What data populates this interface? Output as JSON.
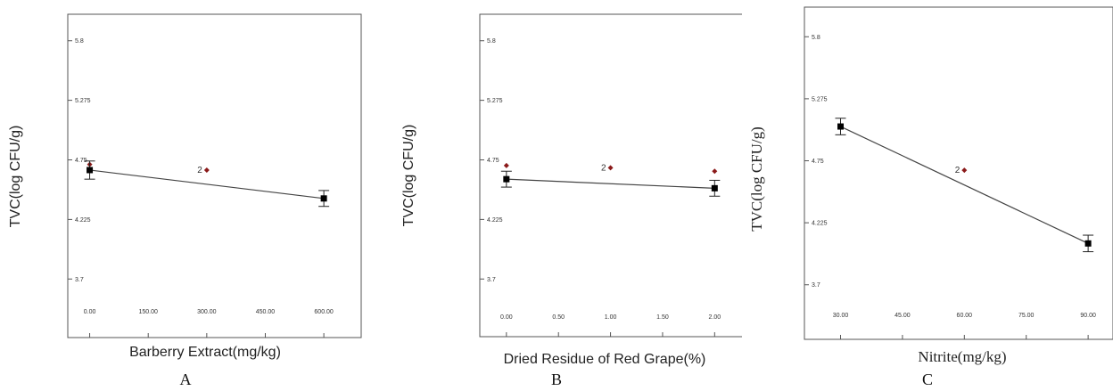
{
  "chart_data": [
    {
      "type": "line",
      "panel_label": "A",
      "xlabel": "Barberry Extract(mg/kg)",
      "ylabel": "TVC(log CFU/g)",
      "xlim": [
        -15,
        650
      ],
      "ylim": [
        3.6,
        5.9
      ],
      "x_ticks": [
        0,
        150,
        300,
        450,
        600
      ],
      "x_tick_labels": [
        "0.00",
        "150.00",
        "300.00",
        "450.00",
        "600.00"
      ],
      "y_ticks": [
        3.7,
        4.225,
        4.75,
        5.275,
        5.8
      ],
      "y_tick_labels": [
        "3.7",
        "4.225",
        "4.75",
        "5.275",
        "5.8"
      ],
      "fit_line": [
        {
          "x": 0,
          "y": 4.66
        },
        {
          "x": 600,
          "y": 4.41
        }
      ],
      "means": [
        {
          "x": 0,
          "y": 4.66,
          "err": 0.08
        },
        {
          "x": 600,
          "y": 4.41,
          "err": 0.07
        }
      ],
      "observations": [
        {
          "x": 0,
          "y": 4.71,
          "label": ""
        },
        {
          "x": 300,
          "y": 4.66,
          "label": "2"
        }
      ],
      "colors": {
        "line": "#444444",
        "mean": "#000000",
        "observation": "#8b1a1a"
      }
    },
    {
      "type": "line",
      "panel_label": "B",
      "xlabel": "Dried Residue of Red Grape(%)",
      "ylabel": "TVC(log CFU/g)",
      "xlim": [
        -0.05,
        2.16
      ],
      "ylim": [
        3.6,
        5.9
      ],
      "x_ticks": [
        0,
        0.5,
        1.0,
        1.5,
        2.0
      ],
      "x_tick_labels": [
        "0.00",
        "0.50",
        "1.00",
        "1.50",
        "2.00"
      ],
      "y_ticks": [
        3.7,
        4.225,
        4.75,
        5.275,
        5.8
      ],
      "y_tick_labels": [
        "3.7",
        "4.225",
        "4.75",
        "5.275",
        "5.8"
      ],
      "fit_line": [
        {
          "x": 0,
          "y": 4.58
        },
        {
          "x": 2,
          "y": 4.5
        }
      ],
      "means": [
        {
          "x": 0,
          "y": 4.58,
          "err": 0.07
        },
        {
          "x": 2,
          "y": 4.5,
          "err": 0.07
        }
      ],
      "observations": [
        {
          "x": 0,
          "y": 4.7,
          "label": ""
        },
        {
          "x": 1,
          "y": 4.68,
          "label": "2"
        },
        {
          "x": 2,
          "y": 4.65,
          "label": ""
        }
      ],
      "colors": {
        "line": "#444444",
        "mean": "#000000",
        "observation": "#8b1a1a"
      }
    },
    {
      "type": "line",
      "panel_label": "C",
      "xlabel": "Nitrite(mg/kg)",
      "ylabel": "TVC(log CFU/g)",
      "xlim": [
        26,
        93
      ],
      "ylim": [
        3.6,
        5.9
      ],
      "x_ticks": [
        30,
        45,
        60,
        75,
        90
      ],
      "x_tick_labels": [
        "30.00",
        "45.00",
        "60.00",
        "75.00",
        "90.00"
      ],
      "y_ticks": [
        3.7,
        4.225,
        4.75,
        5.275,
        5.8
      ],
      "y_tick_labels": [
        "3.7",
        "4.225",
        "4.75",
        "5.275",
        "5.8"
      ],
      "fit_line": [
        {
          "x": 30,
          "y": 5.04
        },
        {
          "x": 90,
          "y": 4.05
        }
      ],
      "means": [
        {
          "x": 30,
          "y": 5.04,
          "err": 0.07
        },
        {
          "x": 90,
          "y": 4.05,
          "err": 0.07
        }
      ],
      "observations": [
        {
          "x": 60,
          "y": 4.67,
          "label": "2"
        }
      ],
      "colors": {
        "line": "#444444",
        "mean": "#000000",
        "observation": "#8b1a1a"
      }
    }
  ]
}
